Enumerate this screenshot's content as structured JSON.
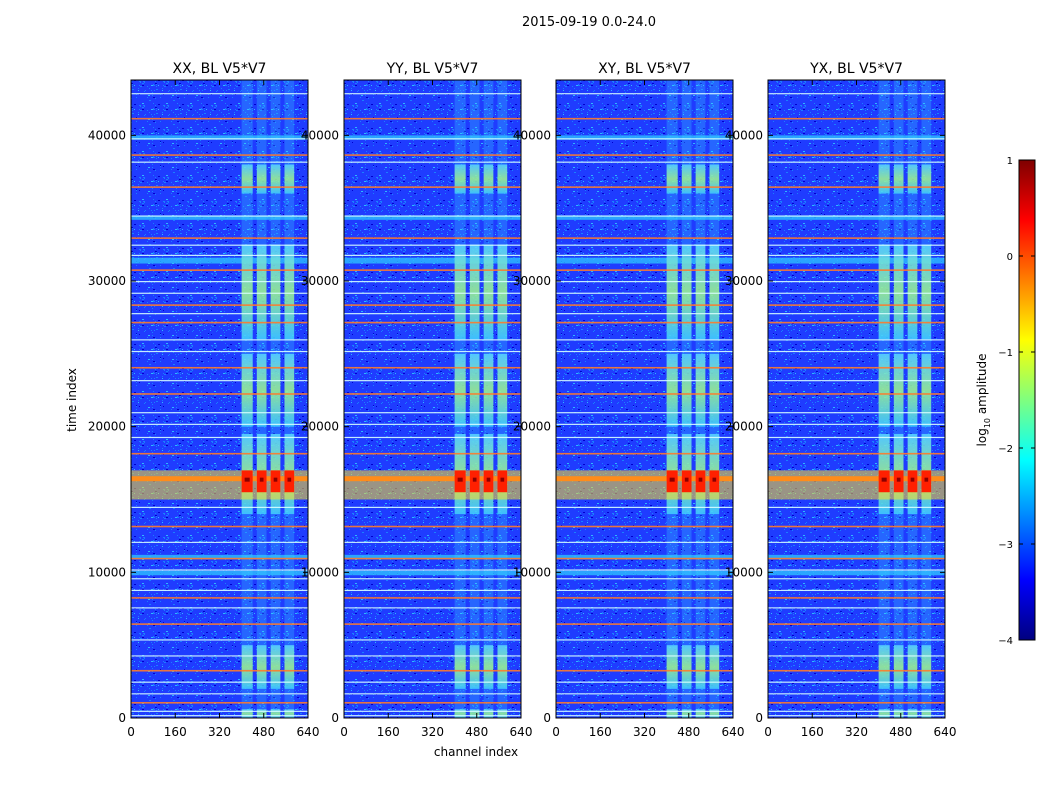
{
  "figure_title": "2015-09-19 0.0-24.0",
  "chart_data": {
    "type": "heatmap",
    "title": "2015-09-19 0.0-24.0",
    "xlabel": "channel index",
    "ylabel": "time index",
    "xlim": [
      0,
      640
    ],
    "ylim": [
      0,
      43800
    ],
    "xticks": [
      0,
      160,
      320,
      480,
      640
    ],
    "yticks": [
      0,
      10000,
      20000,
      30000,
      40000
    ],
    "panels": [
      {
        "name": "XX, BL V5*V7",
        "polarization": "XX",
        "baseline": "V5*V7"
      },
      {
        "name": "YY, BL V5*V7",
        "polarization": "YY",
        "baseline": "V5*V7"
      },
      {
        "name": "XY, BL V5*V7",
        "polarization": "XY",
        "baseline": "V5*V7"
      },
      {
        "name": "YX, BL V5*V7",
        "polarization": "YX",
        "baseline": "V5*V7"
      }
    ],
    "colorbar": {
      "label": "log10 amplitude",
      "label_main": "log",
      "label_sub": "10",
      "label_rest": " amplitude",
      "range": [
        -4,
        1
      ],
      "ticks": [
        1,
        0,
        -1,
        -2,
        -3,
        -4
      ],
      "tick_labels": [
        "1",
        "0",
        "−1",
        "−2",
        "−3",
        "−4"
      ],
      "colormap": "jet",
      "colors": [
        "#00007f",
        "#0000ff",
        "#007fff",
        "#00ffff",
        "#7fff7f",
        "#ffff00",
        "#ff7f00",
        "#ff0000",
        "#7f0000"
      ]
    },
    "signal_bands_channels": [
      [
        400,
        440
      ],
      [
        455,
        490
      ],
      [
        505,
        540
      ],
      [
        555,
        590
      ]
    ],
    "strong_rfi_time_range": [
      15000,
      17000
    ]
  }
}
